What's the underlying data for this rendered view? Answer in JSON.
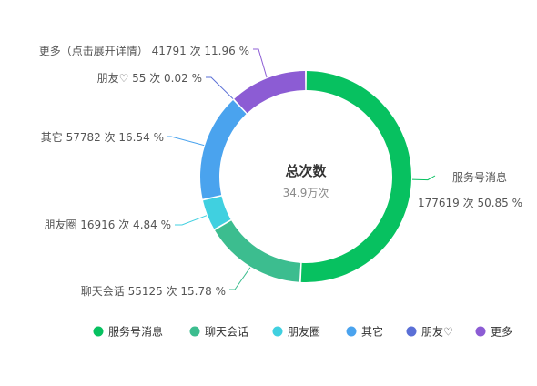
{
  "chart_data": {
    "type": "pie",
    "variant": "donut",
    "center_title": "总次数",
    "center_value": "34.9万次",
    "slices": [
      {
        "name": "服务号消息",
        "value": 177619,
        "unit": "次",
        "percent": 50.85,
        "color": "#07c160",
        "label_line1": "服务号消息",
        "label_line2": "177619 次 50.85 %"
      },
      {
        "name": "聊天会话",
        "value": 55125,
        "unit": "次",
        "percent": 15.78,
        "color": "#3cbd8f",
        "label": "聊天会话 55125 次 15.78 %"
      },
      {
        "name": "朋友圈",
        "value": 16916,
        "unit": "次",
        "percent": 4.84,
        "color": "#40d0e0",
        "label": "朋友圈 16916 次 4.84 %"
      },
      {
        "name": "其它",
        "value": 57782,
        "unit": "次",
        "percent": 16.54,
        "color": "#4aa3ee",
        "label": "其它 57782 次 16.54 %"
      },
      {
        "name": "朋友♡",
        "value": 55,
        "unit": "次",
        "percent": 0.02,
        "color": "#5a6fd6",
        "label": "朋友♡ 55 次 0.02 %"
      },
      {
        "name": "更多（点击展开详情）",
        "value": 41791,
        "unit": "次",
        "percent": 11.96,
        "color": "#8c5cd4",
        "label": "更多（点击展开详情） 41791 次 11.96 %"
      }
    ],
    "legend": {
      "position": "bottom",
      "items": [
        "服务号消息",
        "聊天会话",
        "朋友圈",
        "其它",
        "朋友♡",
        "更多"
      ]
    }
  }
}
